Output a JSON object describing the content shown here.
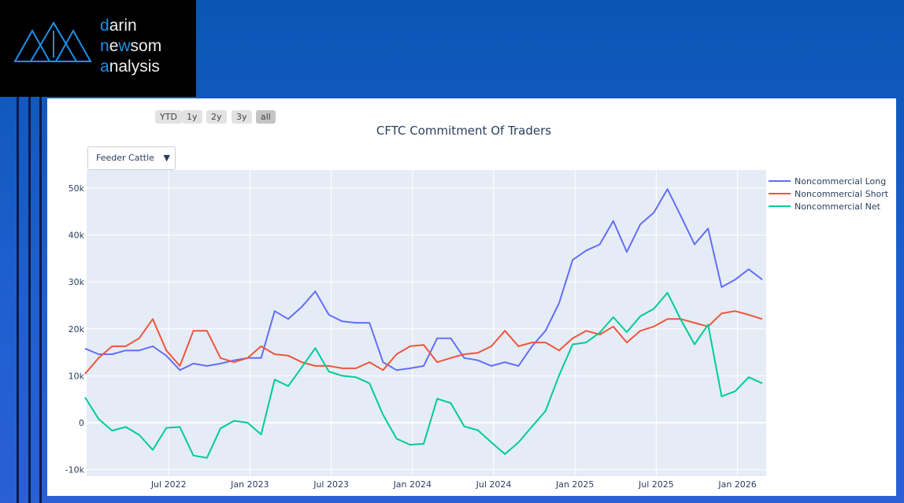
{
  "logo": {
    "line1": "darin",
    "line2": "newsom",
    "line3": "analysis"
  },
  "range_buttons": [
    "YTD",
    "1y",
    "2y",
    "3y",
    "all"
  ],
  "active_range": "all",
  "dropdown": {
    "selected": "Feeder Cattle"
  },
  "chart_data": {
    "type": "line",
    "title": "CFTC Commitment Of Traders",
    "xlabel": "",
    "ylabel": "",
    "x": [
      "2022-01",
      "2022-02",
      "2022-03",
      "2022-04",
      "2022-05",
      "2022-06",
      "2022-07",
      "2022-08",
      "2022-09",
      "2022-10",
      "2022-11",
      "2022-12",
      "2023-01",
      "2023-02",
      "2023-03",
      "2023-04",
      "2023-05",
      "2023-06",
      "2023-07",
      "2023-08",
      "2023-09",
      "2023-10",
      "2023-11",
      "2023-12",
      "2024-01",
      "2024-02",
      "2024-03",
      "2024-04",
      "2024-05",
      "2024-06",
      "2024-07",
      "2024-08",
      "2024-09",
      "2024-10",
      "2024-11",
      "2024-12",
      "2025-01",
      "2025-02",
      "2025-03",
      "2025-04",
      "2025-05",
      "2025-06",
      "2025-07",
      "2025-08",
      "2025-09",
      "2025-10",
      "2025-11",
      "2025-12",
      "2026-01",
      "2026-02",
      "2026-03"
    ],
    "xticks": [
      "Jul 2022",
      "Jan 2023",
      "Jul 2023",
      "Jan 2024",
      "Jul 2024",
      "Jan 2025",
      "Jul 2025",
      "Jan 2026"
    ],
    "yticks": [
      "-10k",
      "0",
      "10k",
      "20k",
      "30k",
      "40k",
      "50k"
    ],
    "ylim": [
      -11000,
      54000
    ],
    "legend_position": "top-right",
    "series": [
      {
        "name": "Noncommercial Long",
        "color": "#636efa",
        "values": [
          15.8,
          14.6,
          14.6,
          15.4,
          15.4,
          16.3,
          14.3,
          11.2,
          12.6,
          12.1,
          12.6,
          13.3,
          13.8,
          13.8,
          23.8,
          22.1,
          24.7,
          28,
          23,
          21.6,
          21.3,
          21.3,
          12.9,
          11.2,
          11.6,
          12.1,
          18,
          18,
          13.8,
          13.3,
          12.1,
          12.9,
          12.1,
          16.3,
          19.6,
          25.5,
          34.7,
          36.7,
          38,
          43,
          36.4,
          42.3,
          44.8,
          49.8,
          44,
          38,
          41.4,
          28.9,
          30.5,
          32.7,
          30.5
        ]
      },
      {
        "name": "Noncommercial Short",
        "color": "#ef553b",
        "values": [
          10.4,
          13.8,
          16.3,
          16.3,
          18,
          22.1,
          15.4,
          12.1,
          19.6,
          19.6,
          13.8,
          12.9,
          13.8,
          16.3,
          14.6,
          14.3,
          12.9,
          12.1,
          12.1,
          11.6,
          11.6,
          12.9,
          11.2,
          14.6,
          16.3,
          16.6,
          12.9,
          13.8,
          14.6,
          14.9,
          16.3,
          19.6,
          16.3,
          17.1,
          17.1,
          15.4,
          18,
          19.6,
          18.8,
          20.5,
          17.1,
          19.6,
          20.5,
          22.1,
          22.1,
          21.3,
          20.5,
          23.3,
          23.8,
          23,
          22.1
        ]
      },
      {
        "name": "Noncommercial Net",
        "color": "#00cc96",
        "values": [
          5.4,
          0.8,
          -1.7,
          -0.9,
          -2.6,
          -5.8,
          -1.1,
          -0.9,
          -7,
          -7.5,
          -1.2,
          0.4,
          0,
          -2.5,
          9.2,
          7.8,
          11.8,
          15.9,
          10.9,
          10,
          9.7,
          8.4,
          1.7,
          -3.4,
          -4.7,
          -4.5,
          5.1,
          4.2,
          -0.8,
          -1.6,
          -4.2,
          -6.7,
          -4.2,
          -0.8,
          2.5,
          10.1,
          16.7,
          17.1,
          19.2,
          22.5,
          19.3,
          22.7,
          24.3,
          27.7,
          21.9,
          16.7,
          20.9,
          5.6,
          6.7,
          9.7,
          8.4
        ]
      }
    ]
  }
}
